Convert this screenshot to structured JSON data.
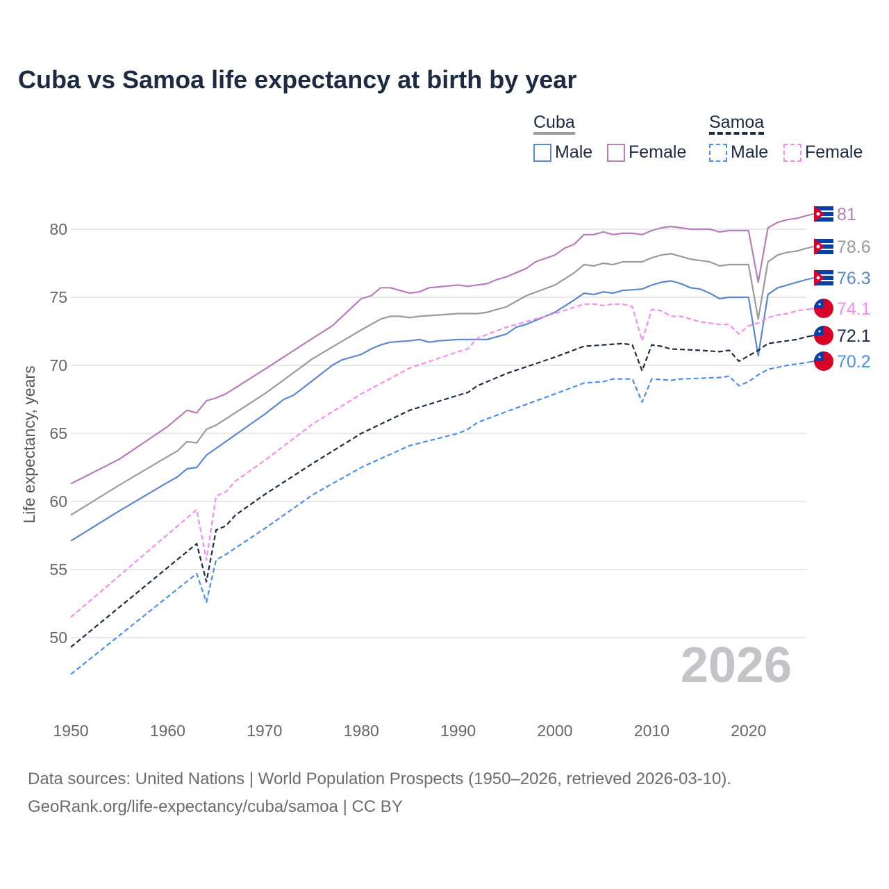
{
  "chart_data": {
    "type": "line",
    "title": "Cuba vs Samoa life expectancy at birth by year",
    "xlabel": "",
    "ylabel": "Life expectancy, years",
    "xlim": [
      1950,
      2026
    ],
    "ylim": [
      46.5,
      82
    ],
    "xticks": [
      "1950",
      "1960",
      "1970",
      "1980",
      "1990",
      "2000",
      "2010",
      "2020"
    ],
    "yticks": [
      "50",
      "55",
      "60",
      "65",
      "70",
      "75",
      "80"
    ],
    "year_label": "2026",
    "legend": {
      "group1": "Cuba",
      "group2": "Samoa",
      "male": "Male",
      "female": "Female"
    },
    "series": [
      {
        "name": "Cuba Female",
        "country": "Cuba",
        "color": "#b77db8",
        "dashed": false,
        "end_label": "81",
        "flag": "cuba",
        "points": [
          [
            1950,
            61.3
          ],
          [
            1955,
            63.1
          ],
          [
            1960,
            65.5
          ],
          [
            1962,
            66.7
          ],
          [
            1963,
            66.5
          ],
          [
            1964,
            67.4
          ],
          [
            1965,
            67.6
          ],
          [
            1966,
            67.9
          ],
          [
            1970,
            69.7
          ],
          [
            1975,
            72.0
          ],
          [
            1977,
            72.9
          ],
          [
            1980,
            74.9
          ],
          [
            1981,
            75.1
          ],
          [
            1982,
            75.7
          ],
          [
            1983,
            75.7
          ],
          [
            1985,
            75.3
          ],
          [
            1986,
            75.4
          ],
          [
            1987,
            75.7
          ],
          [
            1990,
            75.9
          ],
          [
            1991,
            75.8
          ],
          [
            1993,
            76.0
          ],
          [
            1994,
            76.3
          ],
          [
            1995,
            76.5
          ],
          [
            1997,
            77.1
          ],
          [
            1998,
            77.6
          ],
          [
            2000,
            78.1
          ],
          [
            2001,
            78.6
          ],
          [
            2002,
            78.9
          ],
          [
            2003,
            79.6
          ],
          [
            2004,
            79.6
          ],
          [
            2005,
            79.8
          ],
          [
            2006,
            79.6
          ],
          [
            2007,
            79.7
          ],
          [
            2008,
            79.7
          ],
          [
            2009,
            79.6
          ],
          [
            2010,
            79.9
          ],
          [
            2011,
            80.1
          ],
          [
            2012,
            80.2
          ],
          [
            2013,
            80.1
          ],
          [
            2014,
            80.0
          ],
          [
            2016,
            80.0
          ],
          [
            2017,
            79.8
          ],
          [
            2018,
            79.9
          ],
          [
            2020,
            79.9
          ],
          [
            2021,
            76.1
          ],
          [
            2022,
            80.1
          ],
          [
            2023,
            80.5
          ],
          [
            2024,
            80.7
          ],
          [
            2025,
            80.8
          ],
          [
            2026,
            81.0
          ]
        ]
      },
      {
        "name": "Cuba",
        "country": "Cuba",
        "color": "#9a9a9a",
        "dashed": false,
        "end_label": "78.6",
        "flag": "cuba",
        "points": [
          [
            1950,
            59.0
          ],
          [
            1955,
            61.2
          ],
          [
            1960,
            63.3
          ],
          [
            1961,
            63.7
          ],
          [
            1962,
            64.4
          ],
          [
            1963,
            64.3
          ],
          [
            1964,
            65.3
          ],
          [
            1965,
            65.6
          ],
          [
            1970,
            67.9
          ],
          [
            1975,
            70.5
          ],
          [
            1980,
            72.6
          ],
          [
            1982,
            73.4
          ],
          [
            1983,
            73.6
          ],
          [
            1984,
            73.6
          ],
          [
            1985,
            73.5
          ],
          [
            1986,
            73.6
          ],
          [
            1988,
            73.7
          ],
          [
            1990,
            73.8
          ],
          [
            1992,
            73.8
          ],
          [
            1993,
            73.9
          ],
          [
            1995,
            74.3
          ],
          [
            1997,
            75.1
          ],
          [
            2000,
            75.9
          ],
          [
            2002,
            76.8
          ],
          [
            2003,
            77.4
          ],
          [
            2004,
            77.3
          ],
          [
            2005,
            77.5
          ],
          [
            2006,
            77.4
          ],
          [
            2007,
            77.6
          ],
          [
            2009,
            77.6
          ],
          [
            2010,
            77.9
          ],
          [
            2011,
            78.1
          ],
          [
            2012,
            78.2
          ],
          [
            2013,
            78.0
          ],
          [
            2014,
            77.8
          ],
          [
            2016,
            77.6
          ],
          [
            2017,
            77.3
          ],
          [
            2018,
            77.4
          ],
          [
            2020,
            77.4
          ],
          [
            2021,
            73.4
          ],
          [
            2022,
            77.6
          ],
          [
            2023,
            78.1
          ],
          [
            2024,
            78.3
          ],
          [
            2025,
            78.4
          ],
          [
            2026,
            78.6
          ]
        ]
      },
      {
        "name": "Cuba Male",
        "country": "Cuba",
        "color": "#5b87cf",
        "dashed": false,
        "end_label": "76.3",
        "flag": "cuba",
        "points": [
          [
            1950,
            57.1
          ],
          [
            1955,
            59.3
          ],
          [
            1960,
            61.4
          ],
          [
            1961,
            61.8
          ],
          [
            1962,
            62.4
          ],
          [
            1963,
            62.5
          ],
          [
            1964,
            63.4
          ],
          [
            1965,
            63.9
          ],
          [
            1970,
            66.4
          ],
          [
            1972,
            67.5
          ],
          [
            1973,
            67.8
          ],
          [
            1975,
            68.9
          ],
          [
            1977,
            70.0
          ],
          [
            1978,
            70.4
          ],
          [
            1980,
            70.8
          ],
          [
            1981,
            71.2
          ],
          [
            1982,
            71.5
          ],
          [
            1983,
            71.7
          ],
          [
            1985,
            71.8
          ],
          [
            1986,
            71.9
          ],
          [
            1987,
            71.7
          ],
          [
            1988,
            71.8
          ],
          [
            1990,
            71.9
          ],
          [
            1993,
            71.9
          ],
          [
            1995,
            72.3
          ],
          [
            1996,
            72.8
          ],
          [
            1997,
            73.0
          ],
          [
            2000,
            73.9
          ],
          [
            2002,
            74.8
          ],
          [
            2003,
            75.3
          ],
          [
            2004,
            75.2
          ],
          [
            2005,
            75.4
          ],
          [
            2006,
            75.3
          ],
          [
            2007,
            75.5
          ],
          [
            2009,
            75.6
          ],
          [
            2010,
            75.9
          ],
          [
            2011,
            76.1
          ],
          [
            2012,
            76.2
          ],
          [
            2013,
            76.0
          ],
          [
            2014,
            75.7
          ],
          [
            2015,
            75.6
          ],
          [
            2016,
            75.3
          ],
          [
            2017,
            74.9
          ],
          [
            2018,
            75.0
          ],
          [
            2020,
            75.0
          ],
          [
            2021,
            70.7
          ],
          [
            2022,
            75.2
          ],
          [
            2023,
            75.7
          ],
          [
            2024,
            75.9
          ],
          [
            2025,
            76.1
          ],
          [
            2026,
            76.3
          ]
        ]
      },
      {
        "name": "Samoa Female",
        "country": "Samoa",
        "color": "#f98af4",
        "dashed": true,
        "end_label": "74.1",
        "flag": "samoa",
        "points": [
          [
            1950,
            51.5
          ],
          [
            1963,
            59.4
          ],
          [
            1964,
            55.7
          ],
          [
            1965,
            60.4
          ],
          [
            1966,
            60.7
          ],
          [
            1967,
            61.5
          ],
          [
            1970,
            63.0
          ],
          [
            1975,
            65.7
          ],
          [
            1980,
            67.9
          ],
          [
            1985,
            69.8
          ],
          [
            1990,
            71.0
          ],
          [
            1991,
            71.2
          ],
          [
            1992,
            72.0
          ],
          [
            1995,
            72.8
          ],
          [
            2000,
            73.8
          ],
          [
            2003,
            74.5
          ],
          [
            2004,
            74.5
          ],
          [
            2005,
            74.4
          ],
          [
            2006,
            74.5
          ],
          [
            2007,
            74.5
          ],
          [
            2008,
            74.3
          ],
          [
            2009,
            71.8
          ],
          [
            2010,
            74.1
          ],
          [
            2011,
            74.0
          ],
          [
            2012,
            73.6
          ],
          [
            2013,
            73.6
          ],
          [
            2015,
            73.2
          ],
          [
            2017,
            73.0
          ],
          [
            2018,
            73.0
          ],
          [
            2019,
            72.3
          ],
          [
            2020,
            72.9
          ],
          [
            2021,
            73.1
          ],
          [
            2022,
            73.5
          ],
          [
            2023,
            73.7
          ],
          [
            2024,
            73.8
          ],
          [
            2025,
            74.0
          ],
          [
            2026,
            74.1
          ]
        ]
      },
      {
        "name": "Samoa",
        "country": "Samoa",
        "color": "#1c2a42",
        "dashed": true,
        "end_label": "72.1",
        "flag": "samoa",
        "points": [
          [
            1950,
            49.3
          ],
          [
            1963,
            56.9
          ],
          [
            1964,
            54.1
          ],
          [
            1965,
            57.9
          ],
          [
            1966,
            58.2
          ],
          [
            1967,
            59.0
          ],
          [
            1970,
            60.5
          ],
          [
            1975,
            62.8
          ],
          [
            1980,
            65.0
          ],
          [
            1985,
            66.7
          ],
          [
            1990,
            67.8
          ],
          [
            1991,
            68.0
          ],
          [
            1992,
            68.5
          ],
          [
            1995,
            69.4
          ],
          [
            2000,
            70.6
          ],
          [
            2003,
            71.4
          ],
          [
            2005,
            71.5
          ],
          [
            2007,
            71.6
          ],
          [
            2008,
            71.5
          ],
          [
            2009,
            69.6
          ],
          [
            2010,
            71.5
          ],
          [
            2011,
            71.4
          ],
          [
            2012,
            71.2
          ],
          [
            2015,
            71.1
          ],
          [
            2017,
            71.0
          ],
          [
            2018,
            71.1
          ],
          [
            2019,
            70.3
          ],
          [
            2020,
            70.7
          ],
          [
            2021,
            71.1
          ],
          [
            2022,
            71.6
          ],
          [
            2024,
            71.8
          ],
          [
            2025,
            71.9
          ],
          [
            2026,
            72.1
          ]
        ]
      },
      {
        "name": "Samoa Male",
        "country": "Samoa",
        "color": "#4a8ff0",
        "dashed": true,
        "end_label": "70.2",
        "flag": "samoa",
        "points": [
          [
            1950,
            47.3
          ],
          [
            1963,
            54.7
          ],
          [
            1964,
            52.6
          ],
          [
            1965,
            55.7
          ],
          [
            1966,
            56.1
          ],
          [
            1970,
            58.0
          ],
          [
            1975,
            60.5
          ],
          [
            1980,
            62.5
          ],
          [
            1985,
            64.1
          ],
          [
            1990,
            65.0
          ],
          [
            1991,
            65.3
          ],
          [
            1992,
            65.8
          ],
          [
            1995,
            66.6
          ],
          [
            2000,
            67.9
          ],
          [
            2003,
            68.7
          ],
          [
            2005,
            68.8
          ],
          [
            2006,
            69.0
          ],
          [
            2008,
            69.0
          ],
          [
            2009,
            67.3
          ],
          [
            2010,
            69.0
          ],
          [
            2012,
            68.9
          ],
          [
            2013,
            69.0
          ],
          [
            2017,
            69.1
          ],
          [
            2018,
            69.2
          ],
          [
            2019,
            68.5
          ],
          [
            2020,
            68.8
          ],
          [
            2021,
            69.3
          ],
          [
            2022,
            69.7
          ],
          [
            2024,
            70.0
          ],
          [
            2026,
            70.2
          ]
        ]
      }
    ]
  },
  "footer": {
    "line1": "Data sources: United Nations | World Population Prospects (1950–2026, retrieved 2026-03-10).",
    "line2": "GeoRank.org/life-expectancy/cuba/samoa | CC BY"
  }
}
